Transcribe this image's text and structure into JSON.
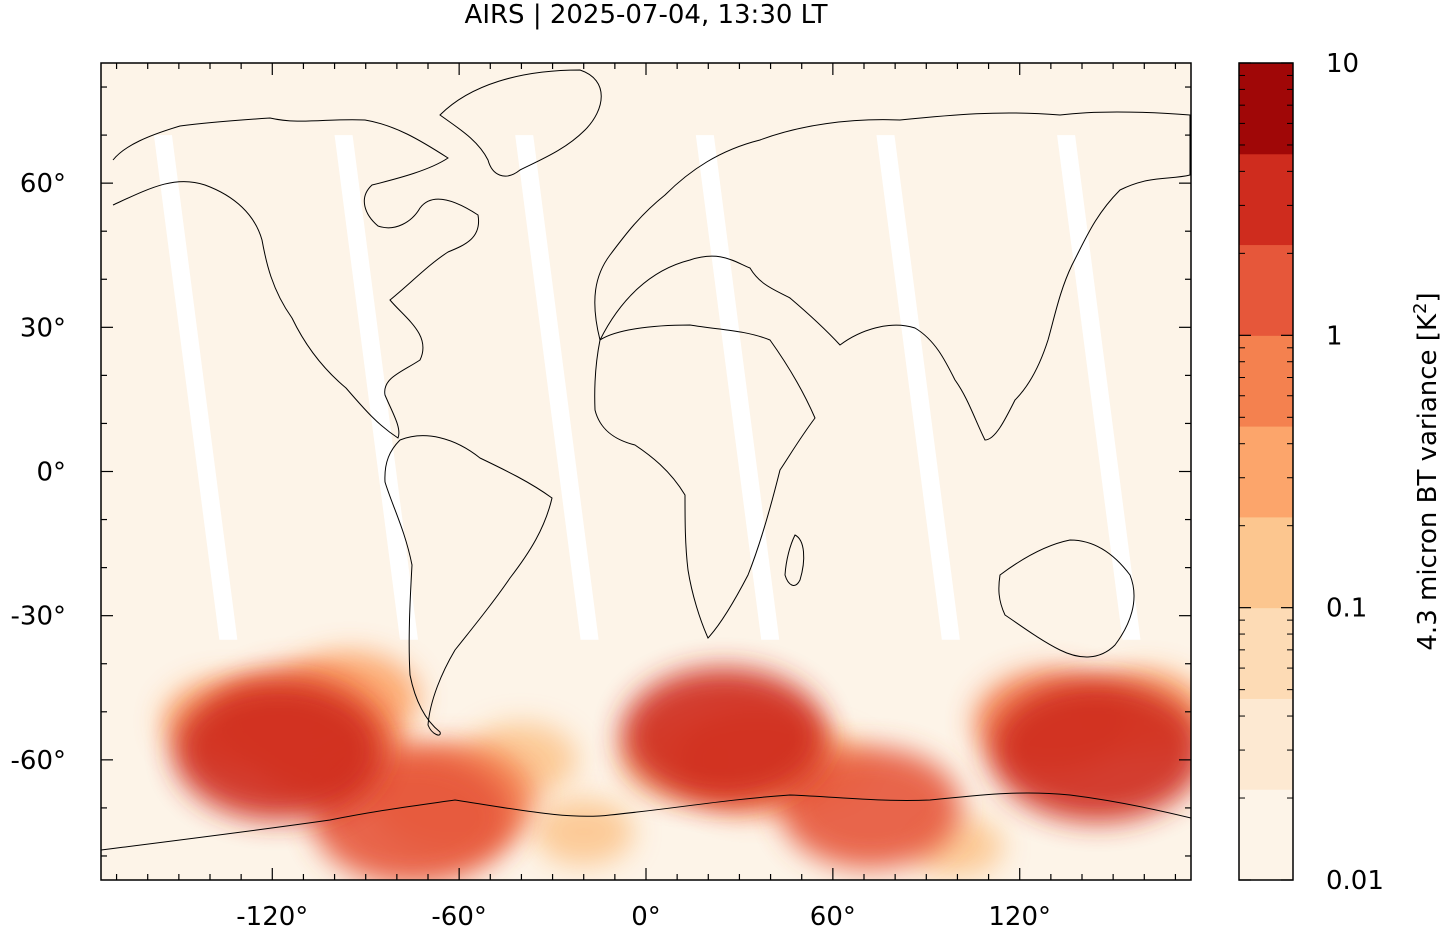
{
  "figure": {
    "title": "AIRS | 2025-07-04, 13:30 LT"
  },
  "chart_data": {
    "type": "heatmap",
    "title": "AIRS | 2025-07-04, 13:30 LT",
    "map_projection": "plate carree (equirectangular), longitude -175 to 175, latitude -85 to 85",
    "x": {
      "label": "",
      "range": [
        -175,
        175
      ],
      "ticks": [
        -120,
        -60,
        0,
        60,
        120
      ],
      "tick_labels": [
        "-120°",
        "-60°",
        "0°",
        "60°",
        "120°"
      ]
    },
    "y": {
      "label": "",
      "range": [
        -85,
        85
      ],
      "ticks": [
        60,
        30,
        0,
        -30,
        -60
      ],
      "tick_labels": [
        "60°",
        "30°",
        "0°",
        "-30°",
        "-60°"
      ]
    },
    "grid": false,
    "colorbar": {
      "label_main": "4.3 micron BT variance [K",
      "label_sup": "2",
      "label_end": "]",
      "scale": "log",
      "range": [
        0.01,
        10
      ],
      "tick_values": [
        0.01,
        0.1,
        1,
        10
      ],
      "tick_labels": [
        "0.01",
        "0.1",
        "1",
        "10"
      ],
      "levels": [
        "#fdf4e8",
        "#fde9d2",
        "#fddbb5",
        "#fcc68f",
        "#fca56b",
        "#f4814f",
        "#e6573a",
        "#cf2c1e",
        "#a00707"
      ]
    },
    "field_regions": [
      {
        "lon": -118,
        "lat": -58,
        "value": 2.5
      },
      {
        "lon": -112,
        "lat": -52,
        "value": 0.8
      },
      {
        "lon": -100,
        "lat": -58,
        "value": 0.5
      },
      {
        "lon": -135,
        "lat": -52,
        "value": 0.3
      },
      {
        "lon": -95,
        "lat": -47,
        "value": 0.4
      },
      {
        "lon": -75,
        "lat": -72,
        "value": 2.0
      },
      {
        "lon": -62,
        "lat": -68,
        "value": 0.8
      },
      {
        "lon": -40,
        "lat": -60,
        "value": 0.2
      },
      {
        "lon": 25,
        "lat": -55,
        "value": 2.2
      },
      {
        "lon": 35,
        "lat": -60,
        "value": 0.7
      },
      {
        "lon": 10,
        "lat": -60,
        "value": 0.2
      },
      {
        "lon": 72,
        "lat": -70,
        "value": 1.2
      },
      {
        "lon": 55,
        "lat": -62,
        "value": 0.2
      },
      {
        "lon": 145,
        "lat": -58,
        "value": 2.8
      },
      {
        "lon": 130,
        "lat": -52,
        "value": 0.6
      },
      {
        "lon": 160,
        "lat": -50,
        "value": 0.3
      },
      {
        "lon": -20,
        "lat": -75,
        "value": 0.15
      },
      {
        "lon": 100,
        "lat": -78,
        "value": 0.12
      }
    ],
    "swath_gaps": [
      {
        "lon_north": -158,
        "lon_south": -137
      },
      {
        "lon_north": -100,
        "lon_south": -79
      },
      {
        "lon_north": -42,
        "lon_south": -21
      },
      {
        "lon_north": 16,
        "lon_south": 37
      },
      {
        "lon_north": 74,
        "lon_south": 95
      },
      {
        "lon_north": 132,
        "lon_south": 153
      }
    ]
  }
}
